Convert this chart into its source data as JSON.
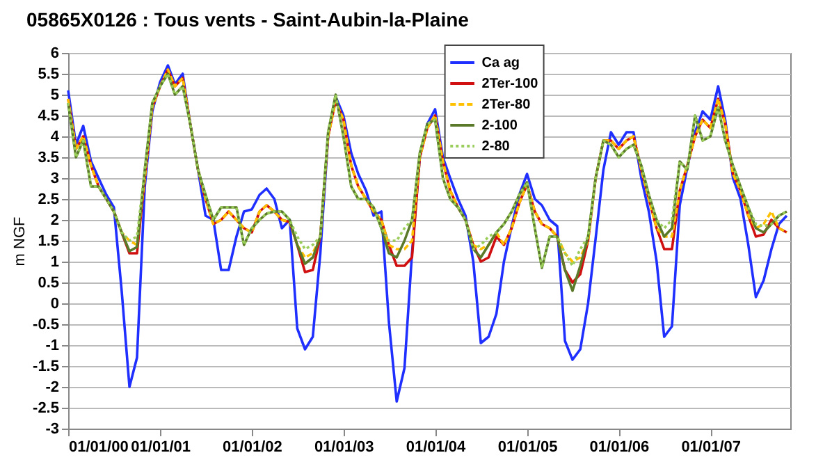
{
  "chart_data": {
    "type": "line",
    "title": "05865X0126 : Tous  vents - Saint-Aubin-la-Plaine",
    "ylabel": "m NGF",
    "x": [
      "2000-01",
      "2000-02",
      "2000-03",
      "2000-04",
      "2000-05",
      "2000-06",
      "2000-07",
      "2000-08",
      "2000-09",
      "2000-10",
      "2000-11",
      "2000-12",
      "2001-01",
      "2001-02",
      "2001-03",
      "2001-04",
      "2001-05",
      "2001-06",
      "2001-07",
      "2001-08",
      "2001-09",
      "2001-10",
      "2001-11",
      "2001-12",
      "2002-01",
      "2002-02",
      "2002-03",
      "2002-04",
      "2002-05",
      "2002-06",
      "2002-07",
      "2002-08",
      "2002-09",
      "2002-10",
      "2002-11",
      "2002-12",
      "2003-01",
      "2003-02",
      "2003-03",
      "2003-04",
      "2003-05",
      "2003-06",
      "2003-07",
      "2003-08",
      "2003-09",
      "2003-10",
      "2003-11",
      "2003-12",
      "2004-01",
      "2004-02",
      "2004-03",
      "2004-04",
      "2004-05",
      "2004-06",
      "2004-07",
      "2004-08",
      "2004-09",
      "2004-10",
      "2004-11",
      "2004-12",
      "2005-01",
      "2005-02",
      "2005-03",
      "2005-04",
      "2005-05",
      "2005-06",
      "2005-07",
      "2005-08",
      "2005-09",
      "2005-10",
      "2005-11",
      "2005-12",
      "2006-01",
      "2006-02",
      "2006-03",
      "2006-04",
      "2006-05",
      "2006-06",
      "2006-07",
      "2006-08",
      "2006-09",
      "2006-10",
      "2006-11",
      "2006-12",
      "2007-01",
      "2007-02",
      "2007-03",
      "2007-04",
      "2007-05",
      "2007-06",
      "2007-07",
      "2007-08",
      "2007-09",
      "2007-10",
      "2007-11"
    ],
    "series": [
      {
        "name": "Ca ag",
        "color": "#1f2fff",
        "line_style": "solid",
        "values": [
          5.1,
          3.8,
          4.25,
          3.4,
          3.0,
          2.6,
          2.3,
          0.3,
          -2.0,
          -1.3,
          2.8,
          4.6,
          5.3,
          5.7,
          5.25,
          5.5,
          4.3,
          3.2,
          2.1,
          2.0,
          0.8,
          0.8,
          1.6,
          2.2,
          2.25,
          2.6,
          2.75,
          2.5,
          1.8,
          2.0,
          -0.6,
          -1.1,
          -0.8,
          1.2,
          4.0,
          4.95,
          4.5,
          3.6,
          3.1,
          2.7,
          2.1,
          2.2,
          -0.45,
          -2.35,
          -1.55,
          1.2,
          3.5,
          4.3,
          4.65,
          3.5,
          3.0,
          2.5,
          2.1,
          1.0,
          -0.95,
          -0.8,
          -0.25,
          1.0,
          1.85,
          2.6,
          3.1,
          2.5,
          2.35,
          2.0,
          1.85,
          -0.9,
          -1.35,
          -1.1,
          0.0,
          1.55,
          3.2,
          4.1,
          3.8,
          4.1,
          4.1,
          3.0,
          2.2,
          1.0,
          -0.8,
          -0.55,
          2.35,
          3.25,
          4.1,
          4.6,
          4.4,
          5.2,
          4.4,
          3.0,
          2.5,
          1.4,
          0.15,
          0.55,
          1.3,
          1.9,
          2.1
        ]
      },
      {
        "name": "2Ter-100",
        "color": "#d01010",
        "line_style": "solid",
        "values": [
          4.9,
          3.7,
          4.0,
          3.3,
          2.8,
          2.5,
          2.2,
          1.7,
          1.2,
          1.2,
          3.0,
          4.7,
          5.2,
          5.6,
          5.2,
          5.4,
          4.3,
          3.2,
          2.5,
          1.9,
          2.0,
          2.2,
          2.0,
          1.8,
          1.7,
          2.2,
          2.35,
          2.2,
          2.0,
          1.95,
          1.4,
          0.75,
          0.8,
          1.6,
          4.0,
          4.85,
          4.4,
          3.3,
          2.8,
          2.5,
          2.2,
          2.0,
          1.4,
          0.9,
          0.9,
          1.1,
          3.5,
          4.2,
          4.5,
          3.4,
          2.7,
          2.3,
          2.0,
          1.4,
          1.0,
          1.1,
          1.6,
          1.4,
          1.8,
          2.4,
          2.85,
          2.2,
          1.9,
          1.8,
          1.6,
          0.8,
          0.5,
          0.7,
          1.5,
          3.0,
          3.9,
          3.9,
          3.7,
          3.9,
          4.0,
          3.2,
          2.5,
          1.8,
          1.3,
          1.3,
          2.7,
          3.3,
          4.0,
          4.4,
          4.2,
          4.9,
          4.3,
          3.1,
          2.7,
          2.1,
          1.6,
          1.65,
          2.0,
          1.8,
          1.7
        ]
      },
      {
        "name": "2Ter-80",
        "color": "#ffc000",
        "line_style": "dashed",
        "values": [
          4.9,
          3.7,
          4.0,
          3.3,
          2.8,
          2.5,
          2.2,
          1.7,
          1.5,
          1.4,
          3.0,
          4.7,
          5.2,
          5.6,
          5.2,
          5.4,
          4.3,
          3.2,
          2.5,
          1.9,
          2.0,
          2.2,
          2.0,
          1.8,
          1.7,
          2.2,
          2.35,
          2.2,
          2.0,
          1.95,
          1.4,
          1.1,
          1.2,
          1.6,
          4.0,
          4.85,
          4.4,
          3.3,
          2.8,
          2.5,
          2.2,
          2.0,
          1.4,
          1.3,
          1.3,
          1.5,
          3.5,
          4.2,
          4.5,
          3.4,
          2.7,
          2.3,
          2.0,
          1.4,
          1.3,
          1.4,
          1.7,
          1.4,
          1.8,
          2.4,
          2.85,
          2.2,
          1.9,
          1.8,
          1.6,
          1.2,
          1.0,
          1.1,
          1.5,
          3.0,
          3.9,
          3.9,
          3.7,
          3.9,
          4.0,
          3.2,
          2.5,
          1.8,
          1.6,
          1.6,
          2.7,
          3.3,
          4.0,
          4.4,
          4.2,
          4.9,
          4.3,
          3.1,
          2.7,
          2.1,
          1.8,
          1.9,
          2.2,
          1.8,
          1.7
        ]
      },
      {
        "name": "2-100",
        "color": "#5a7a2a",
        "line_style": "solid",
        "values": [
          4.8,
          3.5,
          3.9,
          2.8,
          2.8,
          2.5,
          2.2,
          1.7,
          1.25,
          1.35,
          3.2,
          4.8,
          5.2,
          5.5,
          5.0,
          5.2,
          4.3,
          3.2,
          2.6,
          2.0,
          2.3,
          2.3,
          2.3,
          1.4,
          1.8,
          2.0,
          2.15,
          2.2,
          2.2,
          2.0,
          1.4,
          0.95,
          1.1,
          1.6,
          4.1,
          5.0,
          4.0,
          2.8,
          2.5,
          2.5,
          2.3,
          1.8,
          1.2,
          1.1,
          1.5,
          2.0,
          3.6,
          4.3,
          4.4,
          3.0,
          2.5,
          2.3,
          2.0,
          1.3,
          1.1,
          1.4,
          1.7,
          1.9,
          2.2,
          2.6,
          2.9,
          1.8,
          0.85,
          1.6,
          1.6,
          0.8,
          0.3,
          0.9,
          1.6,
          3.0,
          3.9,
          3.8,
          3.5,
          3.7,
          3.8,
          3.3,
          2.6,
          2.0,
          1.6,
          1.8,
          3.4,
          3.2,
          4.5,
          3.9,
          4.0,
          4.7,
          3.9,
          3.3,
          2.8,
          2.3,
          1.8,
          1.7,
          1.9,
          2.1,
          2.2
        ]
      },
      {
        "name": "2-80",
        "color": "#9acd5a",
        "line_style": "dotted",
        "values": [
          4.8,
          3.5,
          3.9,
          2.8,
          2.8,
          2.5,
          2.2,
          1.7,
          1.5,
          1.6,
          3.2,
          4.8,
          5.2,
          5.5,
          5.0,
          5.2,
          4.3,
          3.2,
          2.6,
          2.0,
          2.3,
          2.3,
          2.3,
          1.4,
          1.8,
          2.0,
          2.15,
          2.2,
          2.2,
          2.0,
          1.6,
          1.3,
          1.4,
          1.6,
          4.1,
          5.0,
          4.0,
          2.8,
          2.5,
          2.5,
          2.3,
          1.8,
          1.5,
          1.5,
          1.8,
          2.0,
          3.6,
          4.3,
          4.4,
          3.0,
          2.5,
          2.3,
          2.0,
          1.3,
          1.4,
          1.6,
          1.7,
          1.9,
          2.2,
          2.6,
          2.9,
          1.8,
          0.85,
          1.6,
          1.6,
          1.2,
          0.9,
          1.3,
          1.6,
          3.0,
          3.9,
          3.8,
          3.5,
          3.7,
          3.8,
          3.3,
          2.6,
          2.0,
          1.8,
          2.0,
          3.4,
          3.2,
          4.5,
          3.9,
          4.0,
          4.7,
          3.9,
          3.3,
          2.8,
          2.3,
          1.9,
          1.85,
          1.9,
          2.1,
          2.2
        ]
      }
    ],
    "xlim": [
      "2000-01-01",
      "2007-11-15"
    ],
    "xticks": [
      {
        "value": "2000-01-01",
        "label": "01/01/00"
      },
      {
        "value": "2001-01-01",
        "label": "01/01/01"
      },
      {
        "value": "2002-01-01",
        "label": "01/01/02"
      },
      {
        "value": "2003-01-01",
        "label": "01/01/03"
      },
      {
        "value": "2004-01-01",
        "label": "01/01/04"
      },
      {
        "value": "2005-01-01",
        "label": "01/01/05"
      },
      {
        "value": "2006-01-01",
        "label": "01/01/06"
      },
      {
        "value": "2007-01-01",
        "label": "01/01/07"
      }
    ],
    "ylim": [
      -3,
      6
    ],
    "yticks": [
      -3,
      -2.5,
      -2,
      -1.5,
      -1,
      -0.5,
      0,
      0.5,
      1,
      1.5,
      2,
      2.5,
      3,
      3.5,
      4,
      4.5,
      5,
      5.5,
      6
    ],
    "grid": "y",
    "legend": "top right",
    "marker": "none"
  }
}
